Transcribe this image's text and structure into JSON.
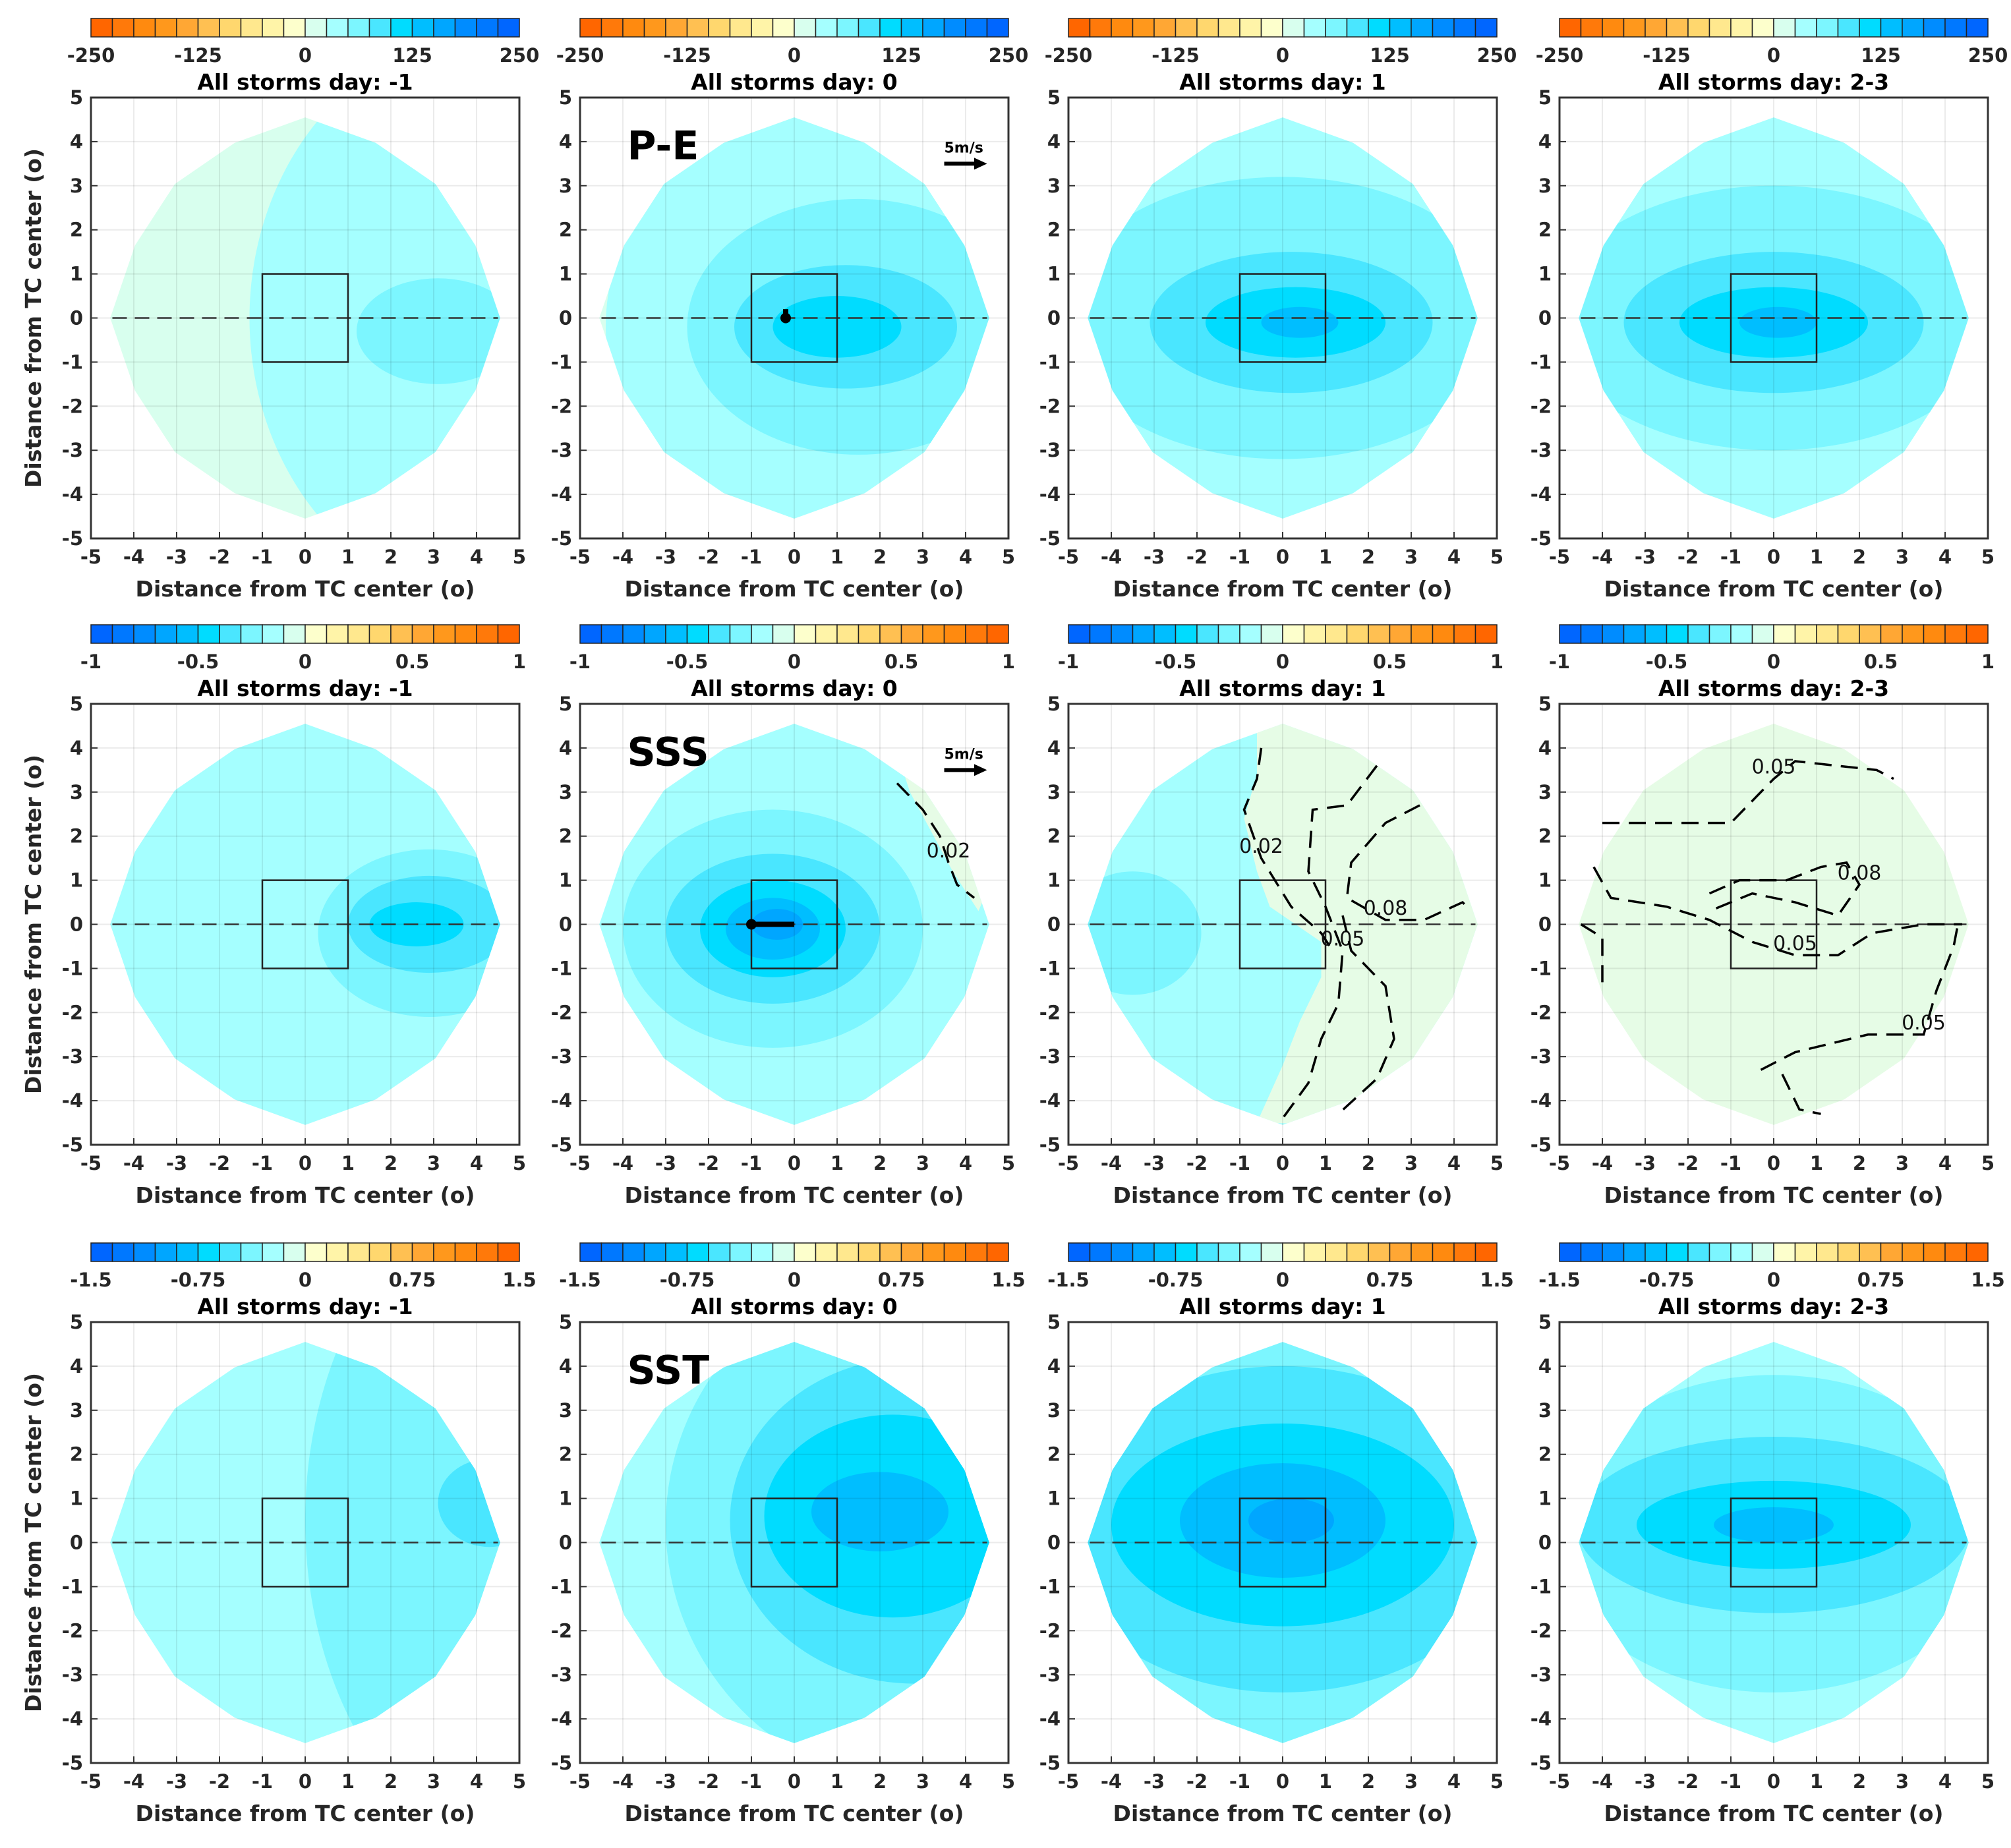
{
  "palette": [
    "#FF6600",
    "#FF790A",
    "#FF8A0F",
    "#FF981C",
    "#FFA734",
    "#FFC052",
    "#FFD76E",
    "#FFE88E",
    "#FFF4A8",
    "#FDFFCC",
    "#D8FFEE",
    "#A5FFFF",
    "#7CF6FF",
    "#4AE6FF",
    "#00DCFF",
    "#00BEFF",
    "#00A6FF",
    "#008CFF",
    "#0078FF",
    "#0066FF"
  ],
  "green": "#E6FCE6",
  "chart_data": {
    "type": "contour",
    "xlabel": "Distance from TC center (o)",
    "ylabel": "Distance from TC center (o)",
    "xlim": [
      -5,
      5
    ],
    "ylim": [
      -5,
      5
    ],
    "ticks": [
      "-5",
      "-4",
      "-3",
      "-2",
      "-1",
      "0",
      "1",
      "2",
      "3",
      "4",
      "5"
    ],
    "grid": true,
    "wind_label": "5m/s",
    "rows": [
      {
        "variable": "P-E",
        "colorbar": {
          "ticks": [
            "-250",
            "-125",
            "0",
            "125",
            "250"
          ],
          "range": [
            -250,
            250
          ],
          "reversed": false
        },
        "panels": [
          {
            "title": "All storms day: -1",
            "background": 10,
            "fills": [
              [
                4.5,
                0,
                5.8,
                6.5,
                11
              ],
              [
                3.1,
                -0.3,
                1.9,
                1.2,
                12
              ]
            ]
          },
          {
            "title": "All storms day: 0",
            "background": 10,
            "label": "P-E",
            "wind": true,
            "fills": [
              [
                2.2,
                -0.2,
                6.6,
                5.6,
                11
              ],
              [
                1.5,
                -0.2,
                4.0,
                2.9,
                12
              ],
              [
                1.2,
                -0.2,
                2.6,
                1.4,
                13
              ],
              [
                1.0,
                -0.2,
                1.5,
                0.7,
                14
              ]
            ],
            "vectors": [
              [
                -0.2,
                0.2,
                0.0,
                -0.2
              ]
            ]
          },
          {
            "title": "All storms day: 1",
            "background": 11,
            "fills": [
              [
                0,
                0,
                5.2,
                3.2,
                12
              ],
              [
                0.2,
                -0.1,
                3.3,
                1.6,
                13
              ],
              [
                0.3,
                -0.1,
                2.1,
                0.8,
                14
              ],
              [
                0.4,
                -0.1,
                0.9,
                0.35,
                15
              ]
            ]
          },
          {
            "title": "All storms day: 2-3",
            "background": 11,
            "fills": [
              [
                0,
                0,
                5.2,
                3.0,
                12
              ],
              [
                0,
                -0.1,
                3.5,
                1.6,
                13
              ],
              [
                0,
                -0.1,
                2.2,
                0.8,
                14
              ],
              [
                0.1,
                -0.1,
                0.9,
                0.35,
                15
              ]
            ]
          }
        ]
      },
      {
        "variable": "SSS",
        "colorbar": {
          "ticks": [
            "-1",
            "-0.5",
            "0",
            "0.5",
            "1"
          ],
          "range": [
            -1,
            1
          ],
          "reversed": true
        },
        "panels": [
          {
            "title": "All storms day: -1",
            "background": 11,
            "fills": [
              [
                2.9,
                -0.2,
                2.6,
                1.9,
                12
              ],
              [
                2.9,
                0,
                1.9,
                1.1,
                13
              ],
              [
                2.6,
                0,
                1.1,
                0.5,
                14
              ]
            ]
          },
          {
            "title": "All storms day: 0",
            "background": 11,
            "label": "SSS",
            "wind": true,
            "fills": [
              [
                -0.5,
                -0.1,
                3.5,
                2.7,
                12
              ],
              [
                -0.5,
                -0.1,
                2.5,
                1.7,
                13
              ],
              [
                -0.5,
                -0.1,
                1.7,
                1.1,
                14
              ],
              [
                -0.5,
                -0.1,
                1.1,
                0.7,
                15
              ],
              [
                -0.4,
                0,
                0.6,
                0.35,
                16
              ]
            ],
            "green_patches": [
              [
                [
                  2.3,
                  4.2
                ],
                [
                  3.3,
                  3.6
                ],
                [
                  4.4,
                  2.4
                ],
                [
                  4.6,
                  1.0
                ],
                [
                  4.3,
                  0.3
                ],
                [
                  3.7,
                  1.2
                ],
                [
                  2.7,
                  3.0
                ]
              ]
            ],
            "vectors": [
              [
                0.0,
                0.0,
                -1.0,
                0.0
              ]
            ],
            "contours": [
              {
                "label": "0.02",
                "points": [
                  [
                    2.4,
                    3.2
                  ],
                  [
                    3.0,
                    2.6
                  ],
                  [
                    3.4,
                    2.0
                  ],
                  [
                    3.6,
                    1.4
                  ],
                  [
                    3.8,
                    0.9
                  ],
                  [
                    4.2,
                    0.6
                  ]
                ]
              }
            ]
          },
          {
            "title": "All storms day: 1",
            "background": 11,
            "fills": [
              [
                -3.5,
                -0.2,
                1.6,
                1.4,
                12
              ]
            ],
            "green_patches": [
              [
                [
                  -0.6,
                  4.6
                ],
                [
                  -0.6,
                  3.4
                ],
                [
                  -0.9,
                  2.4
                ],
                [
                  -0.6,
                  1.2
                ],
                [
                  -0.3,
                  0.4
                ],
                [
                  0.9,
                  -0.4
                ],
                [
                  0.9,
                  -1.2
                ],
                [
                  0.4,
                  -2.2
                ],
                [
                  0,
                  -3.2
                ],
                [
                  -0.6,
                  -4.5
                ],
                [
                  4.6,
                  -4.6
                ],
                [
                  4.6,
                  4.6
                ]
              ]
            ],
            "contours": [
              {
                "label": "0.02",
                "points": [
                  [
                    -0.5,
                    4.0
                  ],
                  [
                    -0.6,
                    3.3
                  ],
                  [
                    -0.9,
                    2.6
                  ],
                  [
                    -0.5,
                    1.5
                  ],
                  [
                    0.2,
                    0.4
                  ],
                  [
                    0.9,
                    -0.2
                  ],
                  [
                    1.1,
                    -0.5
                  ]
                ]
              },
              {
                "label": "0.05",
                "points": [
                  [
                    2.2,
                    3.6
                  ],
                  [
                    1.5,
                    2.7
                  ],
                  [
                    0.7,
                    2.6
                  ],
                  [
                    0.6,
                    1.2
                  ],
                  [
                    1.0,
                    0.4
                  ],
                  [
                    1.4,
                    -0.6
                  ],
                  [
                    1.3,
                    -1.8
                  ],
                  [
                    0.9,
                    -2.6
                  ],
                  [
                    0.6,
                    -3.6
                  ],
                  [
                    0,
                    -4.4
                  ]
                ]
              },
              {
                "label": "0.08",
                "points": [
                  [
                    3.2,
                    2.7
                  ],
                  [
                    2.4,
                    2.3
                  ],
                  [
                    1.6,
                    1.4
                  ],
                  [
                    1.5,
                    0.6
                  ],
                  [
                    2.4,
                    0.1
                  ],
                  [
                    3.3,
                    0.1
                  ],
                  [
                    4.2,
                    0.5
                  ],
                  [
                    4.3,
                    0.4
                  ]
                ]
              },
              {
                "label": "",
                "points": [
                  [
                    1.4,
                    0.2
                  ],
                  [
                    1.6,
                    -0.6
                  ],
                  [
                    2.4,
                    -1.4
                  ],
                  [
                    2.6,
                    -2.6
                  ],
                  [
                    2.2,
                    -3.5
                  ],
                  [
                    1.3,
                    -4.3
                  ]
                ]
              }
            ]
          },
          {
            "title": "All storms day: 2-3",
            "background": -1,
            "green_patches": [
              [
                [
                  -4.6,
                  4.6
                ],
                [
                  4.6,
                  4.6
                ],
                [
                  4.6,
                  -4.6
                ],
                [
                  -4.6,
                  -4.6
                ]
              ]
            ],
            "contours": [
              {
                "label": "0.05",
                "points": [
                  [
                    -4.0,
                    2.3
                  ],
                  [
                    -2.5,
                    2.3
                  ],
                  [
                    -1.0,
                    2.3
                  ],
                  [
                    0.0,
                    3.3
                  ],
                  [
                    0.5,
                    3.7
                  ],
                  [
                    2.4,
                    3.5
                  ],
                  [
                    2.8,
                    3.3
                  ]
                ]
              },
              {
                "label": "0.05",
                "points": [
                  [
                    -4.2,
                    1.3
                  ],
                  [
                    -3.8,
                    0.6
                  ],
                  [
                    -2.5,
                    0.4
                  ],
                  [
                    -1.5,
                    0.1
                  ],
                  [
                    -0.5,
                    -0.4
                  ],
                  [
                    0.5,
                    -0.7
                  ],
                  [
                    1.5,
                    -0.7
                  ],
                  [
                    2.3,
                    -0.2
                  ],
                  [
                    3.5,
                    0
                  ],
                  [
                    4.4,
                    0
                  ]
                ]
              },
              {
                "label": "0.08",
                "points": [
                  [
                    -1.5,
                    0.7
                  ],
                  [
                    -0.8,
                    1.0
                  ],
                  [
                    0.3,
                    1.0
                  ],
                  [
                    1.1,
                    1.3
                  ],
                  [
                    1.7,
                    1.4
                  ],
                  [
                    2.0,
                    0.9
                  ],
                  [
                    1.5,
                    0.2
                  ],
                  [
                    0.5,
                    0.5
                  ],
                  [
                    -0.5,
                    0.7
                  ],
                  [
                    -1.5,
                    0.3
                  ]
                ]
              },
              {
                "label": "",
                "points": [
                  [
                    -4.5,
                    0
                  ],
                  [
                    -4.0,
                    -0.3
                  ],
                  [
                    -4.0,
                    -1.4
                  ]
                ]
              },
              {
                "label": "0.05",
                "points": [
                  [
                    -0.3,
                    -3.3
                  ],
                  [
                    0.5,
                    -2.9
                  ],
                  [
                    2.2,
                    -2.5
                  ],
                  [
                    3.5,
                    -2.5
                  ],
                  [
                    3.8,
                    -1.5
                  ],
                  [
                    4.2,
                    -0.5
                  ],
                  [
                    4.3,
                    0
                  ]
                ]
              },
              {
                "label": "",
                "points": [
                  [
                    0.2,
                    -3.4
                  ],
                  [
                    0.6,
                    -4.2
                  ],
                  [
                    1.1,
                    -4.3
                  ]
                ]
              }
            ]
          }
        ]
      },
      {
        "variable": "SST",
        "colorbar": {
          "ticks": [
            "-1.5",
            "-0.75",
            "0",
            "0.75",
            "1.5"
          ],
          "range": [
            -1.5,
            1.5
          ],
          "reversed": true
        },
        "panels": [
          {
            "title": "All storms day: -1",
            "background": 11,
            "fills": [
              [
                6.0,
                0.5,
                6.0,
                8.0,
                12
              ],
              [
                4.3,
                0.9,
                1.2,
                1.0,
                13
              ]
            ]
          },
          {
            "title": "All storms day: 0",
            "background": 11,
            "label": "SST",
            "fills": [
              [
                3.2,
                0.4,
                6.2,
                6.0,
                12
              ],
              [
                2.8,
                0.5,
                4.3,
                3.7,
                13
              ],
              [
                2.3,
                0.6,
                3.0,
                2.3,
                14
              ],
              [
                2.0,
                0.7,
                1.6,
                0.9,
                15
              ]
            ]
          },
          {
            "title": "All storms day: 1",
            "background": 12,
            "fills": [
              [
                0,
                0.3,
                5.4,
                3.7,
                13
              ],
              [
                0,
                0.4,
                4.0,
                2.3,
                14
              ],
              [
                0,
                0.5,
                2.4,
                1.3,
                15
              ],
              [
                0.2,
                0.5,
                1.0,
                0.5,
                16
              ]
            ]
          },
          {
            "title": "All storms day: 2-3",
            "background": 11,
            "fills": [
              [
                0,
                0.2,
                5.2,
                3.6,
                12
              ],
              [
                0,
                0.4,
                4.6,
                2.0,
                13
              ],
              [
                0,
                0.4,
                3.2,
                1.0,
                14
              ],
              [
                0,
                0.4,
                1.4,
                0.4,
                15
              ]
            ]
          }
        ]
      }
    ]
  }
}
